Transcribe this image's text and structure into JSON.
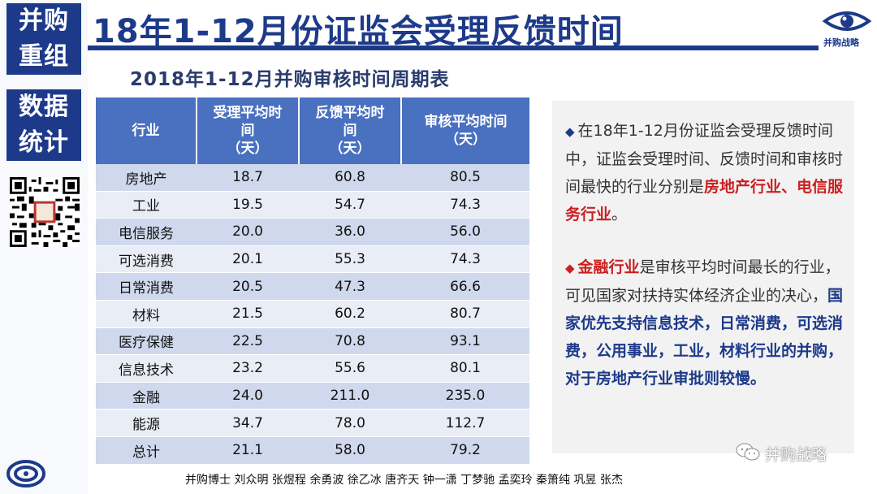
{
  "sidebar": {
    "block1_line1": "并购",
    "block1_line2": "重组",
    "block2_line1": "数据",
    "block2_line2": "统计"
  },
  "header": {
    "title": "18年1-12月份证监会受理反馈时间",
    "logo_text": "并购战略"
  },
  "table": {
    "title": "2018年1-12月并购审核时间周期表",
    "headers": [
      [
        "行业"
      ],
      [
        "受理平均时",
        "间",
        "（天）"
      ],
      [
        "反馈平均时",
        "间",
        "（天）"
      ],
      [
        "审核平均时间",
        "（天）"
      ]
    ],
    "rows": [
      [
        "房地产",
        "18.7",
        "60.8",
        "80.5"
      ],
      [
        "工业",
        "19.5",
        "54.7",
        "74.3"
      ],
      [
        "电信服务",
        "20.0",
        "36.0",
        "56.0"
      ],
      [
        "可选消费",
        "20.1",
        "55.3",
        "74.3"
      ],
      [
        "日常消费",
        "20.5",
        "47.3",
        "66.6"
      ],
      [
        "材料",
        "21.5",
        "60.2",
        "80.7"
      ],
      [
        "医疗保健",
        "22.5",
        "70.8",
        "93.1"
      ],
      [
        "信息技术",
        "23.2",
        "55.6",
        "80.1"
      ],
      [
        "金融",
        "24.0",
        "211.0",
        "235.0"
      ],
      [
        "能源",
        "34.7",
        "78.0",
        "112.7"
      ],
      [
        "总计",
        "21.1",
        "58.0",
        "79.2"
      ]
    ]
  },
  "panel": {
    "p1_text": "在18年1-12月份证监会受理反馈时间中，证监会受理时间、反馈时间和审核时间最快的行业分别是",
    "p1_highlight": "房地产行业、电信服务行业",
    "p1_end": "。",
    "p2_highlight": "金融行业",
    "p2_text": "是审核平均时间最长的行业，可见国家对扶持实体经济企业的决心，",
    "p2_bold": "国家优先支持信息技术，日常消费，可选消费，公用事业，工业，材料行业的并购，对于房地产行业审批则较慢。"
  },
  "footer": {
    "credits": "并购博士  刘众明 张煜程 余勇波 徐乙冰 唐齐天 钟一潇 丁梦驰 孟奕玲 秦箫纯 巩昱 张杰",
    "wechat": "并购战略"
  },
  "colors": {
    "primary": "#1d3a8a",
    "header_fill": "#4a70c0",
    "row_odd": "#cfd8ec",
    "row_even": "#e9edf6",
    "highlight_red": "#cc1f1f"
  }
}
